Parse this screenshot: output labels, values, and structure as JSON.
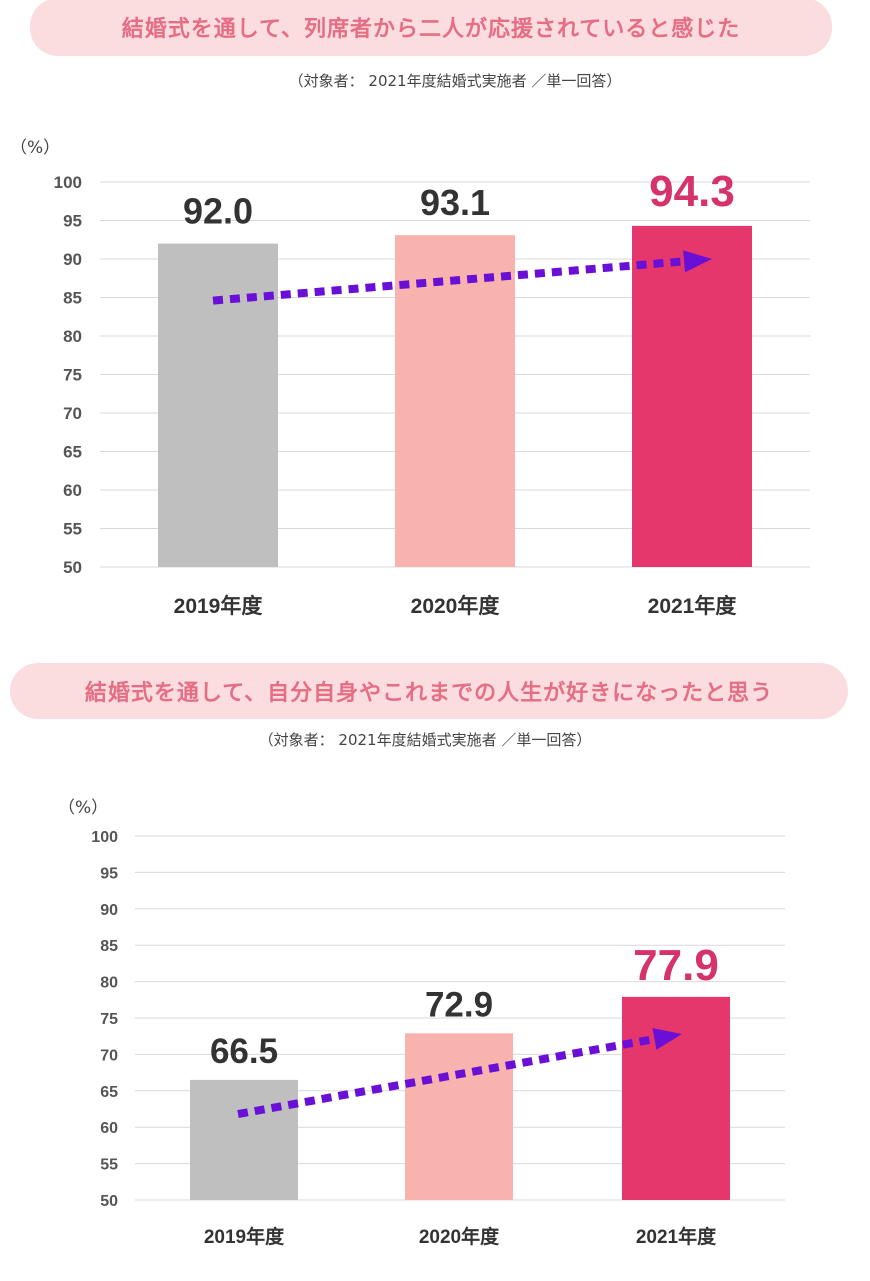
{
  "colors": {
    "banner_bg": "#fbdde0",
    "banner_text": "#e56d84",
    "bar_2019": "#bfbfbf",
    "bar_2020": "#f8b3ae",
    "bar_2021": "#e5376c",
    "highlight_label": "#d6336c",
    "arrow": "#6a0fd6",
    "grid": "#d9d9d9"
  },
  "chart_data": [
    {
      "type": "bar",
      "title": "結婚式を通して、列席者から二人が応援されていると感じた",
      "subtitle": "（対象者： 2021年度結婚式実施者 ／単一回答）",
      "ylabel": "（%）",
      "ylim": [
        50,
        100
      ],
      "yticks": [
        "100",
        "95",
        "90",
        "85",
        "80",
        "75",
        "70",
        "65",
        "60",
        "55",
        "50"
      ],
      "categories": [
        "2019年度",
        "2020年度",
        "2021年度"
      ],
      "values": [
        92.0,
        93.1,
        94.3
      ],
      "data_labels": [
        "92.0",
        "93.1",
        "94.3"
      ],
      "trend_arrow": {
        "from": 84.6,
        "to": 90.0
      }
    },
    {
      "type": "bar",
      "title": "結婚式を通して、自分自身やこれまでの人生が好きになったと思う",
      "subtitle": "（対象者： 2021年度結婚式実施者 ／単一回答）",
      "ylabel": "（%）",
      "ylim": [
        50,
        100
      ],
      "yticks": [
        "100",
        "95",
        "90",
        "85",
        "80",
        "75",
        "70",
        "65",
        "60",
        "55",
        "50"
      ],
      "categories": [
        "2019年度",
        "2020年度",
        "2021年度"
      ],
      "values": [
        66.5,
        72.9,
        77.9
      ],
      "data_labels": [
        "66.5",
        "72.9",
        "77.9"
      ],
      "trend_arrow": {
        "from": 61.8,
        "to": 72.8
      }
    }
  ]
}
